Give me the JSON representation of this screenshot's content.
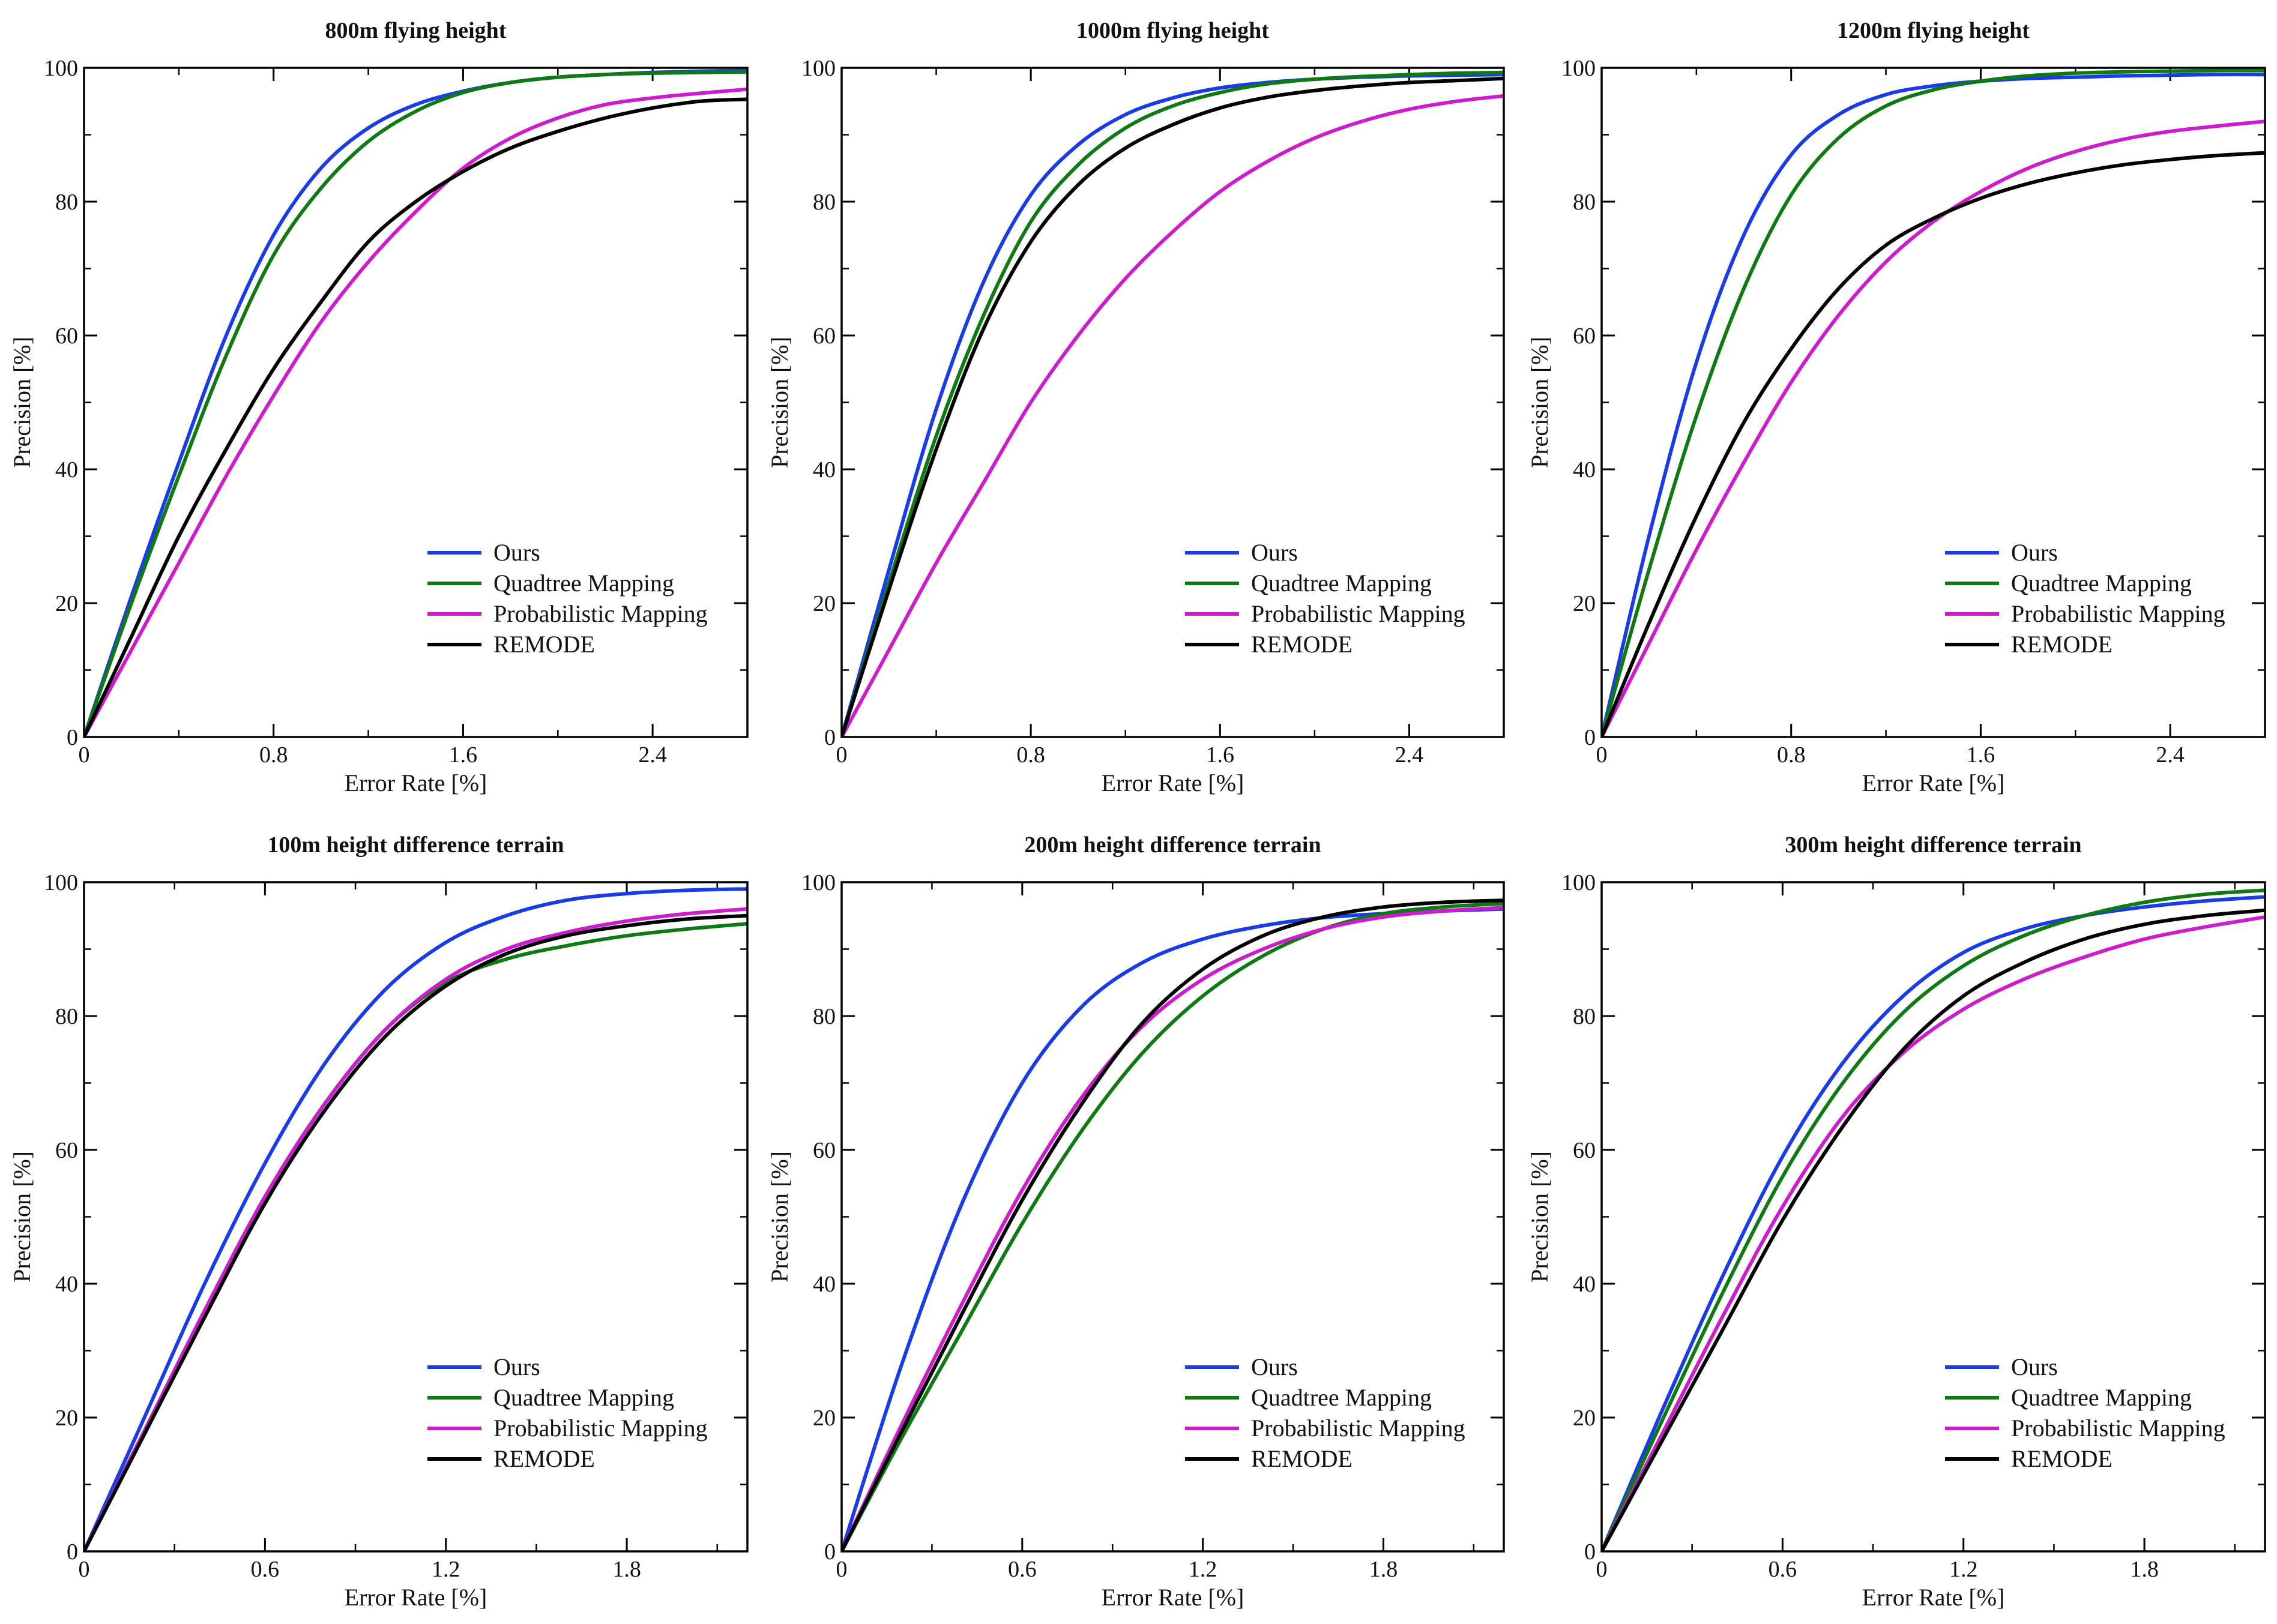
{
  "colors": {
    "Ours": "#1a3ce6",
    "Quadtree Mapping": "#0f7a12",
    "Probabilistic Mapping": "#cc1ccc",
    "REMODE": "#000000"
  },
  "chart_data": [
    {
      "type": "line",
      "title": "800m flying height",
      "xlabel": "Error Rate [%]",
      "ylabel": "Precision [%]",
      "xlim": [
        0,
        2.8
      ],
      "ylim": [
        0,
        100
      ],
      "xticks": [
        0,
        0.8,
        1.6,
        2.4
      ],
      "xtick_labels": [
        "0",
        "0.8",
        "1.6",
        "2.4"
      ],
      "yticks": [
        0,
        20,
        40,
        60,
        80,
        100
      ],
      "ytick_labels": [
        "0",
        "20",
        "40",
        "60",
        "80",
        "100"
      ],
      "legend": [
        "Ours",
        "Quadtree Mapping",
        "Probabilistic Mapping",
        "REMODE"
      ],
      "legend_position": "lower-right",
      "series": [
        {
          "name": "Ours",
          "x": [
            0,
            0.2,
            0.4,
            0.6,
            0.8,
            1.0,
            1.2,
            1.4,
            1.6,
            1.8,
            2.0,
            2.2,
            2.4,
            2.6,
            2.8
          ],
          "values": [
            0,
            21,
            41,
            60,
            75,
            85,
            91,
            94.5,
            96.5,
            97.8,
            98.6,
            99.0,
            99.3,
            99.5,
            99.6
          ]
        },
        {
          "name": "Quadtree Mapping",
          "x": [
            0,
            0.2,
            0.4,
            0.6,
            0.8,
            1.0,
            1.2,
            1.4,
            1.6,
            1.8,
            2.0,
            2.2,
            2.4,
            2.6,
            2.8
          ],
          "values": [
            0,
            20,
            39,
            57,
            72,
            82,
            89,
            93.5,
            96.3,
            97.8,
            98.6,
            99.0,
            99.2,
            99.3,
            99.4
          ]
        },
        {
          "name": "Probabilistic Mapping",
          "x": [
            0,
            0.2,
            0.4,
            0.6,
            0.8,
            1.0,
            1.2,
            1.4,
            1.6,
            1.8,
            2.0,
            2.2,
            2.4,
            2.6,
            2.8
          ],
          "values": [
            0,
            13,
            26,
            39,
            51,
            62,
            71,
            78.5,
            85,
            89.5,
            92.5,
            94.5,
            95.5,
            96.2,
            96.8
          ]
        },
        {
          "name": "REMODE",
          "x": [
            0,
            0.2,
            0.4,
            0.6,
            0.8,
            1.0,
            1.2,
            1.4,
            1.6,
            1.8,
            2.0,
            2.2,
            2.4,
            2.6,
            2.8
          ],
          "values": [
            0,
            15,
            30,
            43,
            55,
            65,
            74,
            80,
            84.5,
            88,
            90.5,
            92.5,
            94,
            95,
            95.3
          ]
        }
      ]
    },
    {
      "type": "line",
      "title": "1000m flying height",
      "xlabel": "Error Rate [%]",
      "ylabel": "Precision [%]",
      "xlim": [
        0,
        2.8
      ],
      "ylim": [
        0,
        100
      ],
      "xticks": [
        0,
        0.8,
        1.6,
        2.4
      ],
      "xtick_labels": [
        "0",
        "0.8",
        "1.6",
        "2.4"
      ],
      "yticks": [
        0,
        20,
        40,
        60,
        80,
        100
      ],
      "ytick_labels": [
        "0",
        "20",
        "40",
        "60",
        "80",
        "100"
      ],
      "legend": [
        "Ours",
        "Quadtree Mapping",
        "Probabilistic Mapping",
        "REMODE"
      ],
      "legend_position": "lower-right",
      "series": [
        {
          "name": "Ours",
          "x": [
            0,
            0.2,
            0.4,
            0.6,
            0.8,
            1.0,
            1.2,
            1.4,
            1.6,
            1.8,
            2.0,
            2.2,
            2.4,
            2.6,
            2.8
          ],
          "values": [
            0,
            25,
            49,
            68,
            81,
            88.5,
            93,
            95.5,
            97,
            97.8,
            98.3,
            98.6,
            98.8,
            98.9,
            99
          ]
        },
        {
          "name": "Quadtree Mapping",
          "x": [
            0,
            0.2,
            0.4,
            0.6,
            0.8,
            1.0,
            1.2,
            1.4,
            1.6,
            1.8,
            2.0,
            2.2,
            2.4,
            2.6,
            2.8
          ],
          "values": [
            0,
            23,
            45,
            63,
            77,
            85.5,
            91,
            94.3,
            96.3,
            97.6,
            98.3,
            98.7,
            99,
            99.2,
            99.3
          ]
        },
        {
          "name": "Probabilistic Mapping",
          "x": [
            0,
            0.2,
            0.4,
            0.6,
            0.8,
            1.0,
            1.2,
            1.4,
            1.6,
            1.8,
            2.0,
            2.2,
            2.4,
            2.6,
            2.8
          ],
          "values": [
            0,
            13,
            26,
            38,
            50,
            60,
            68.5,
            75.5,
            81.5,
            86,
            89.5,
            92,
            93.8,
            95,
            95.8
          ]
        },
        {
          "name": "REMODE",
          "x": [
            0,
            0.2,
            0.4,
            0.6,
            0.8,
            1.0,
            1.2,
            1.4,
            1.6,
            1.8,
            2.0,
            2.2,
            2.4,
            2.6,
            2.8
          ],
          "values": [
            0,
            22,
            43,
            61,
            74,
            82.5,
            88,
            91.5,
            94,
            95.6,
            96.6,
            97.3,
            97.8,
            98.1,
            98.4
          ]
        }
      ]
    },
    {
      "type": "line",
      "title": "1200m flying height",
      "xlabel": "Error Rate [%]",
      "ylabel": "Precision [%]",
      "xlim": [
        0,
        2.8
      ],
      "ylim": [
        0,
        100
      ],
      "xticks": [
        0,
        0.8,
        1.6,
        2.4
      ],
      "xtick_labels": [
        "0",
        "0.8",
        "1.6",
        "2.4"
      ],
      "yticks": [
        0,
        20,
        40,
        60,
        80,
        100
      ],
      "ytick_labels": [
        "0",
        "20",
        "40",
        "60",
        "80",
        "100"
      ],
      "legend": [
        "Ours",
        "Quadtree Mapping",
        "Probabilistic Mapping",
        "REMODE"
      ],
      "legend_position": "lower-right",
      "series": [
        {
          "name": "Ours",
          "x": [
            0,
            0.2,
            0.4,
            0.6,
            0.8,
            1.0,
            1.2,
            1.4,
            1.6,
            1.8,
            2.0,
            2.2,
            2.4,
            2.6,
            2.8
          ],
          "values": [
            0,
            30,
            56,
            75,
            87,
            93,
            96,
            97.3,
            98,
            98.4,
            98.6,
            98.8,
            98.9,
            99,
            99
          ]
        },
        {
          "name": "Quadtree Mapping",
          "x": [
            0,
            0.2,
            0.4,
            0.6,
            0.8,
            1.0,
            1.2,
            1.4,
            1.6,
            1.8,
            2.0,
            2.2,
            2.4,
            2.6,
            2.8
          ],
          "values": [
            0,
            25,
            48,
            67,
            81,
            89.5,
            94.3,
            96.7,
            98,
            98.8,
            99.2,
            99.4,
            99.5,
            99.6,
            99.6
          ]
        },
        {
          "name": "Probabilistic Mapping",
          "x": [
            0,
            0.2,
            0.4,
            0.6,
            0.8,
            1.0,
            1.2,
            1.4,
            1.6,
            1.8,
            2.0,
            2.2,
            2.4,
            2.6,
            2.8
          ],
          "values": [
            0,
            14,
            28,
            41,
            53,
            63,
            71,
            77,
            81.5,
            85,
            87.5,
            89.3,
            90.5,
            91.3,
            92
          ]
        },
        {
          "name": "REMODE",
          "x": [
            0,
            0.2,
            0.4,
            0.6,
            0.8,
            1.0,
            1.2,
            1.4,
            1.6,
            1.8,
            2.0,
            2.2,
            2.4,
            2.6,
            2.8
          ],
          "values": [
            0,
            17,
            33,
            47,
            58,
            67,
            73.5,
            77.5,
            80.5,
            82.7,
            84.3,
            85.5,
            86.3,
            86.9,
            87.3
          ]
        }
      ]
    },
    {
      "type": "line",
      "title": "100m height difference terrain",
      "xlabel": "Error Rate [%]",
      "ylabel": "Precision [%]",
      "xlim": [
        0,
        2.2
      ],
      "ylim": [
        0,
        100
      ],
      "xticks": [
        0,
        0.6,
        1.2,
        1.8
      ],
      "xtick_labels": [
        "0",
        "0.6",
        "1.2",
        "1.8"
      ],
      "yticks": [
        0,
        20,
        40,
        60,
        80,
        100
      ],
      "ytick_labels": [
        "0",
        "20",
        "40",
        "60",
        "80",
        "100"
      ],
      "legend": [
        "Ours",
        "Quadtree Mapping",
        "Probabilistic Mapping",
        "REMODE"
      ],
      "legend_position": "lower-right",
      "series": [
        {
          "name": "Ours",
          "x": [
            0,
            0.2,
            0.4,
            0.6,
            0.8,
            1.0,
            1.2,
            1.4,
            1.6,
            1.8,
            2.0,
            2.2
          ],
          "values": [
            0,
            20,
            40,
            58,
            73,
            84,
            91,
            95,
            97.3,
            98.3,
            98.8,
            99
          ]
        },
        {
          "name": "Quadtree Mapping",
          "x": [
            0,
            0.2,
            0.4,
            0.6,
            0.8,
            1.0,
            1.2,
            1.4,
            1.6,
            1.8,
            2.0,
            2.2
          ],
          "values": [
            0,
            18,
            36,
            53,
            67,
            78,
            85,
            88.5,
            90.5,
            92,
            93,
            93.8
          ]
        },
        {
          "name": "Probabilistic Mapping",
          "x": [
            0,
            0.2,
            0.4,
            0.6,
            0.8,
            1.0,
            1.2,
            1.4,
            1.6,
            1.8,
            2.0,
            2.2
          ],
          "values": [
            0,
            18,
            36,
            53,
            67,
            78,
            85.5,
            90,
            92.5,
            94.2,
            95.3,
            96
          ]
        },
        {
          "name": "REMODE",
          "x": [
            0,
            0.2,
            0.4,
            0.6,
            0.8,
            1.0,
            1.2,
            1.4,
            1.6,
            1.8,
            2.0,
            2.2
          ],
          "values": [
            0,
            17.5,
            35,
            52,
            66,
            77,
            84.5,
            89.3,
            92,
            93.5,
            94.5,
            95
          ]
        }
      ]
    },
    {
      "type": "line",
      "title": "200m height difference terrain",
      "xlabel": "Error Rate [%]",
      "ylabel": "Precision [%]",
      "xlim": [
        0,
        2.2
      ],
      "ylim": [
        0,
        100
      ],
      "xticks": [
        0,
        0.6,
        1.2,
        1.8
      ],
      "xtick_labels": [
        "0",
        "0.6",
        "1.2",
        "1.8"
      ],
      "yticks": [
        0,
        20,
        40,
        60,
        80,
        100
      ],
      "ytick_labels": [
        "0",
        "20",
        "40",
        "60",
        "80",
        "100"
      ],
      "legend": [
        "Ours",
        "Quadtree Mapping",
        "Probabilistic Mapping",
        "REMODE"
      ],
      "legend_position": "lower-right",
      "series": [
        {
          "name": "Ours",
          "x": [
            0,
            0.2,
            0.4,
            0.6,
            0.8,
            1.0,
            1.2,
            1.4,
            1.6,
            1.8,
            2.0,
            2.2
          ],
          "values": [
            0,
            28,
            52,
            70,
            81.5,
            88,
            91.5,
            93.5,
            94.7,
            95.3,
            95.7,
            96
          ]
        },
        {
          "name": "Quadtree Mapping",
          "x": [
            0,
            0.2,
            0.4,
            0.6,
            0.8,
            1.0,
            1.2,
            1.4,
            1.6,
            1.8,
            2.0,
            2.2
          ],
          "values": [
            0,
            17,
            33,
            49,
            63,
            74.5,
            83,
            89,
            93,
            95.3,
            96.3,
            96.8
          ]
        },
        {
          "name": "Probabilistic Mapping",
          "x": [
            0,
            0.2,
            0.4,
            0.6,
            0.8,
            1.0,
            1.2,
            1.4,
            1.6,
            1.8,
            2.0,
            2.2
          ],
          "values": [
            0,
            19,
            37,
            54,
            68,
            78.5,
            85.5,
            90,
            93,
            94.8,
            95.7,
            96.2
          ]
        },
        {
          "name": "REMODE",
          "x": [
            0,
            0.2,
            0.4,
            0.6,
            0.8,
            1.0,
            1.2,
            1.4,
            1.6,
            1.8,
            2.0,
            2.2
          ],
          "values": [
            0,
            18,
            35.5,
            52.5,
            67,
            79,
            87,
            92,
            94.8,
            96.3,
            97,
            97.3
          ]
        }
      ]
    },
    {
      "type": "line",
      "title": "300m height difference terrain",
      "xlabel": "Error Rate [%]",
      "ylabel": "Precision [%]",
      "xlim": [
        0,
        2.2
      ],
      "ylim": [
        0,
        100
      ],
      "xticks": [
        0,
        0.6,
        1.2,
        1.8
      ],
      "xtick_labels": [
        "0",
        "0.6",
        "1.2",
        "1.8"
      ],
      "yticks": [
        0,
        20,
        40,
        60,
        80,
        100
      ],
      "ytick_labels": [
        "0",
        "20",
        "40",
        "60",
        "80",
        "100"
      ],
      "legend": [
        "Ours",
        "Quadtree Mapping",
        "Probabilistic Mapping",
        "REMODE"
      ],
      "legend_position": "lower-right",
      "series": [
        {
          "name": "Ours",
          "x": [
            0,
            0.2,
            0.4,
            0.6,
            0.8,
            1.0,
            1.2,
            1.4,
            1.6,
            1.8,
            2.0,
            2.2
          ],
          "values": [
            0,
            21,
            41,
            59,
            73,
            83,
            89.5,
            93,
            95,
            96.3,
            97.2,
            97.8
          ]
        },
        {
          "name": "Quadtree Mapping",
          "x": [
            0,
            0.2,
            0.4,
            0.6,
            0.8,
            1.0,
            1.2,
            1.4,
            1.6,
            1.8,
            2.0,
            2.2
          ],
          "values": [
            0,
            19.5,
            38.5,
            56,
            70,
            80.5,
            87.5,
            92,
            95,
            97,
            98.2,
            98.8
          ]
        },
        {
          "name": "Probabilistic Mapping",
          "x": [
            0,
            0.2,
            0.4,
            0.6,
            0.8,
            1.0,
            1.2,
            1.4,
            1.6,
            1.8,
            2.0,
            2.2
          ],
          "values": [
            0,
            17.5,
            35,
            51.5,
            65,
            74.5,
            81,
            85.5,
            88.8,
            91.5,
            93.3,
            94.8
          ]
        },
        {
          "name": "REMODE",
          "x": [
            0,
            0.2,
            0.4,
            0.6,
            0.8,
            1.0,
            1.2,
            1.4,
            1.6,
            1.8,
            2.0,
            2.2
          ],
          "values": [
            0,
            16.5,
            33,
            49.5,
            63.5,
            75,
            83,
            88,
            91.5,
            93.7,
            95,
            95.8
          ]
        }
      ]
    }
  ]
}
